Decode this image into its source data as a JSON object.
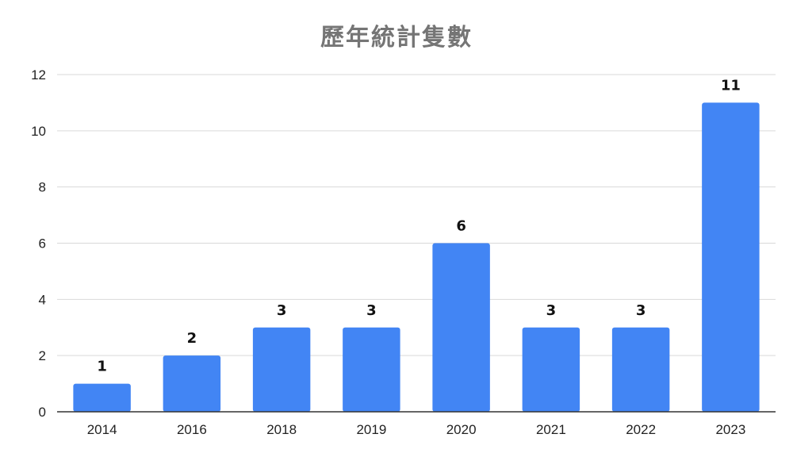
{
  "chart_data": {
    "type": "bar",
    "title": "歷年統計隻數",
    "categories": [
      "2014",
      "2016",
      "2018",
      "2019",
      "2020",
      "2021",
      "2022",
      "2023"
    ],
    "values": [
      1,
      2,
      3,
      3,
      6,
      3,
      3,
      11
    ],
    "data_labels": [
      "1",
      "2",
      "3",
      "3",
      "6",
      "3",
      "3",
      "11"
    ],
    "ylim": [
      0,
      12
    ],
    "yticks": [
      0,
      2,
      4,
      6,
      8,
      10,
      12
    ],
    "grid": true,
    "legend": "none",
    "bar_color": "#4285F4",
    "gridline_color": "#d9d9d9",
    "axis_color": "#333333"
  }
}
